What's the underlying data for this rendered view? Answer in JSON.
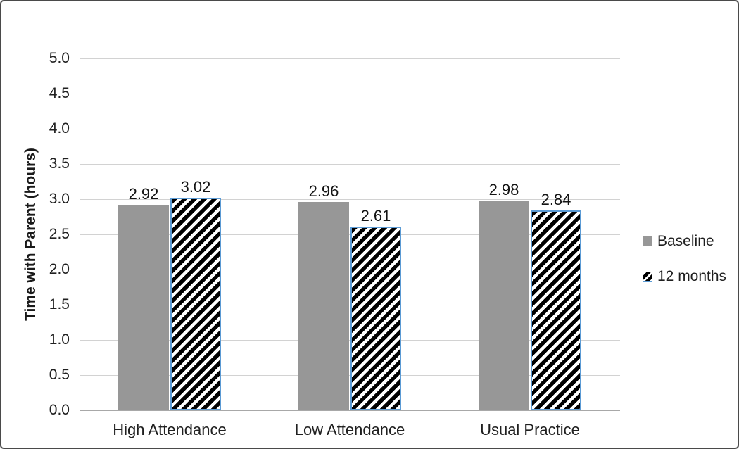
{
  "chart_data": {
    "type": "bar",
    "title": "",
    "categories": [
      "High Attendance",
      "Low Attendance",
      "Usual Practice"
    ],
    "series": [
      {
        "name": "Baseline",
        "values": [
          2.92,
          2.96,
          2.98
        ],
        "pattern": "solid",
        "color": "#979797"
      },
      {
        "name": "12 months",
        "values": [
          3.02,
          2.61,
          2.84
        ],
        "pattern": "diagonal-hatch",
        "stripe_color": "#000000",
        "background_color": "#ffffff",
        "border_color": "#5b9bd5"
      }
    ],
    "xlabel": "",
    "ylabel": "Time with Parent (hours)",
    "ylim": [
      0,
      5.0
    ],
    "ytick_step": 0.5,
    "yticks": [
      "0.0",
      "0.5",
      "1.0",
      "1.5",
      "2.0",
      "2.5",
      "3.0",
      "3.5",
      "4.0",
      "4.5",
      "5.0"
    ],
    "data_labels": [
      "2.92",
      "3.02",
      "2.96",
      "2.61",
      "2.98",
      "2.84"
    ],
    "grid": true,
    "legend_position": "right"
  },
  "legend": {
    "items": [
      {
        "label": "Baseline",
        "swatch": "solid-gray"
      },
      {
        "label": "12 months",
        "swatch": "diagonal-hatch"
      }
    ]
  },
  "colors": {
    "baseline_fill": "#979797",
    "hatch_stripe": "#000000",
    "hatch_background": "#ffffff",
    "hatch_border": "#5b9bd5",
    "gridline": "#d2d2d2",
    "axis_line": "#a8a8a8",
    "text": "#1f1f1f"
  }
}
